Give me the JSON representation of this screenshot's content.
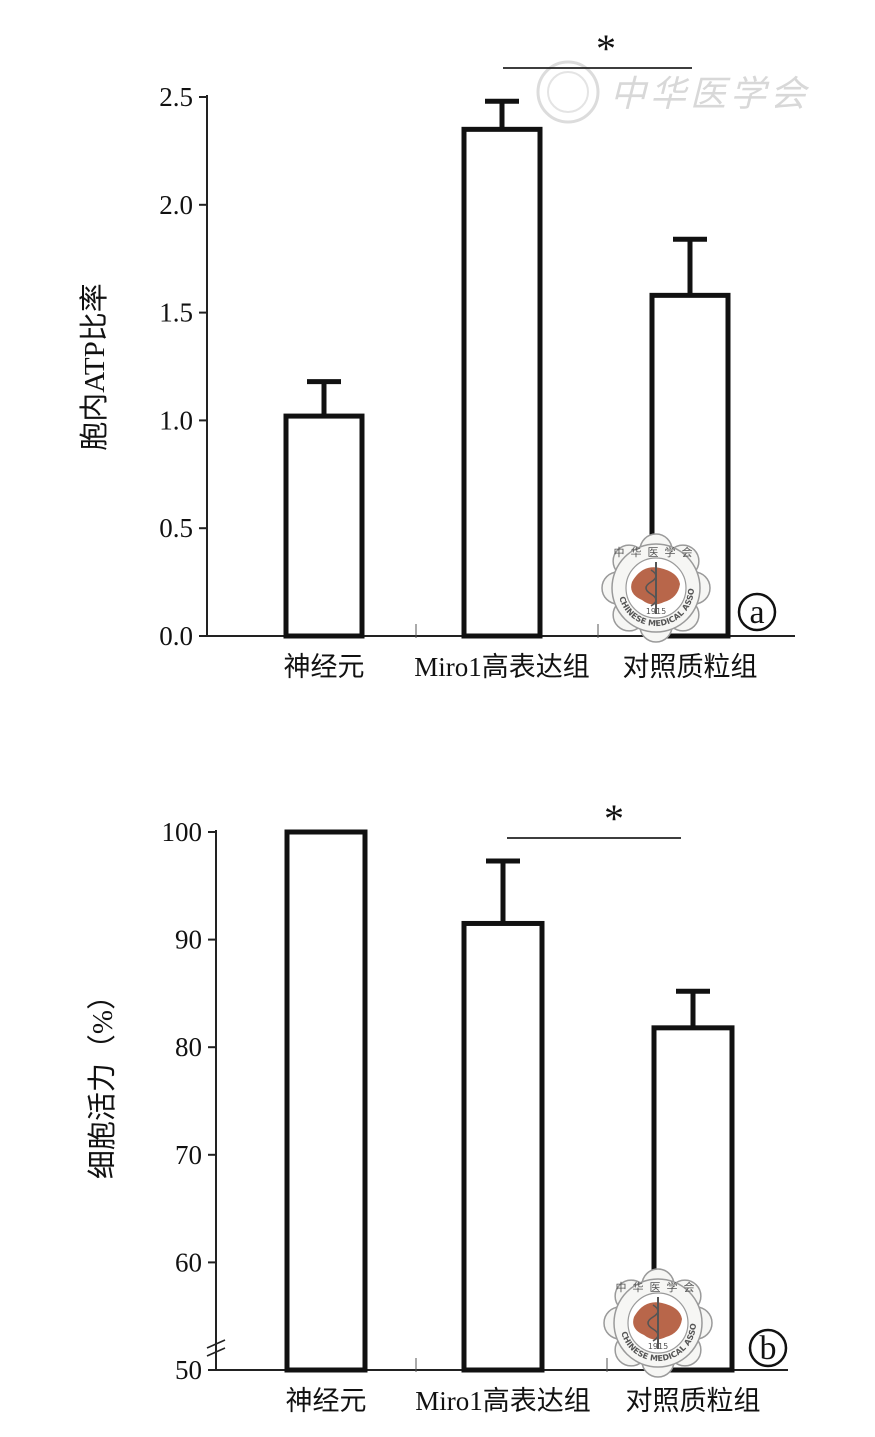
{
  "watermark_text": "中华医学会",
  "logo": {
    "top_text": "中华医学会",
    "ring_text": "CHINESE MEDICAL ASSOCIATION",
    "year": "1915"
  },
  "chart_data": [
    {
      "type": "bar",
      "panel_label": "a",
      "ylabel": "胞内ATP比率",
      "categories": [
        "神经元",
        "Miro1高表达组",
        "对照质粒组"
      ],
      "values": [
        1.02,
        2.35,
        1.58
      ],
      "errors": [
        0.16,
        0.13,
        0.26
      ],
      "ylim": [
        0,
        2.5
      ],
      "yticks": [
        "0.0",
        "0.5",
        "1.0",
        "1.5",
        "2.0",
        "2.5"
      ],
      "significance": {
        "between": [
          1,
          2
        ],
        "label": "*"
      }
    },
    {
      "type": "bar",
      "panel_label": "b",
      "ylabel": "细胞活力（%）",
      "categories": [
        "神经元",
        "Miro1高表达组",
        "对照质粒组"
      ],
      "values": [
        100,
        91.5,
        81.8
      ],
      "errors": [
        0,
        5.8,
        3.4
      ],
      "ylim": [
        50,
        100
      ],
      "yticks": [
        "50",
        "60",
        "70",
        "80",
        "90",
        "100"
      ],
      "axis_break": true,
      "significance": {
        "between": [
          1,
          2
        ],
        "label": "*"
      }
    }
  ]
}
